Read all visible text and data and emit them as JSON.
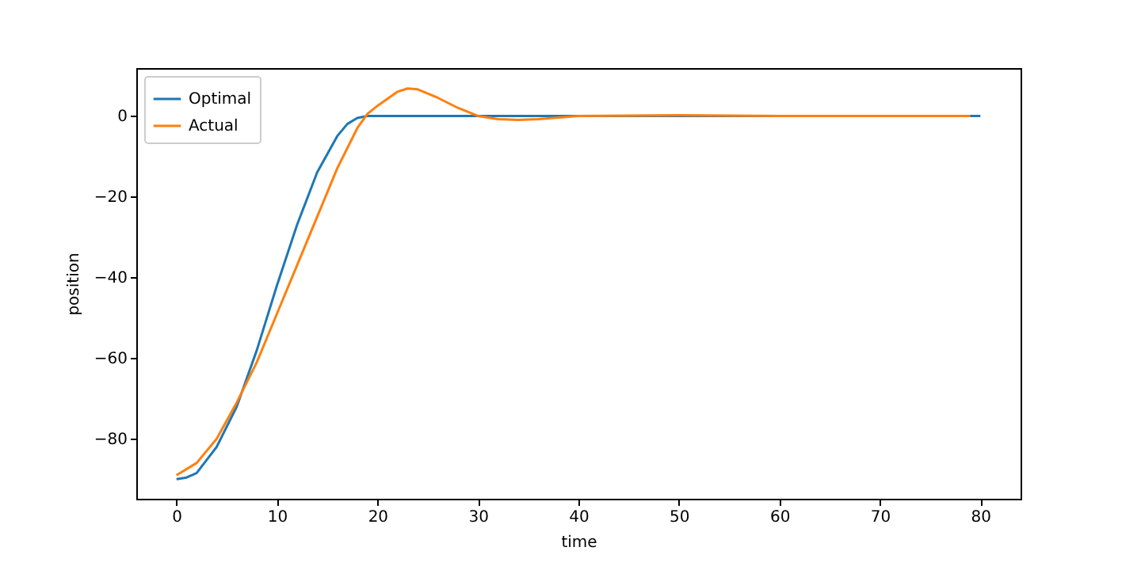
{
  "chart_data": {
    "type": "line",
    "xlabel": "time",
    "ylabel": "position",
    "xlim": [
      -4,
      84
    ],
    "ylim": [
      -94.85,
      11.85
    ],
    "xticks": [
      0,
      10,
      20,
      30,
      40,
      50,
      60,
      70,
      80
    ],
    "yticks": [
      -80,
      -60,
      -40,
      -20,
      0
    ],
    "grid": false,
    "legend": "top left",
    "marker": "none",
    "line_style": "solid",
    "series": [
      {
        "name": "Optimal",
        "color": "#1f77b4",
        "x": [
          0,
          1,
          2,
          4,
          6,
          8,
          10,
          12,
          14,
          16,
          17,
          18,
          19,
          80
        ],
        "values": [
          -90,
          -89.6,
          -88.5,
          -82,
          -72,
          -58,
          -42,
          -27,
          -14,
          -5,
          -2,
          -0.5,
          0,
          0
        ]
      },
      {
        "name": "Actual",
        "color": "#ff7f0e",
        "x": [
          0,
          2,
          4,
          6,
          8,
          10,
          12,
          14,
          16,
          18,
          19,
          20,
          22,
          23,
          24,
          26,
          28,
          30,
          32,
          34,
          36,
          40,
          50,
          60,
          70,
          79
        ],
        "values": [
          -89,
          -86,
          -80,
          -71,
          -61,
          -49,
          -37,
          -25,
          -13,
          -3,
          0.5,
          2.5,
          6,
          6.8,
          6.6,
          4.5,
          2,
          0,
          -0.8,
          -1,
          -0.8,
          0,
          0.2,
          0,
          0,
          0
        ]
      }
    ]
  }
}
